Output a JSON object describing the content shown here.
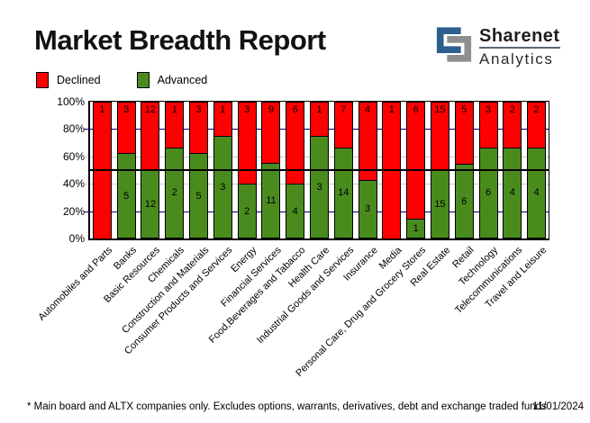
{
  "header": {
    "title": "Market Breadth Report",
    "logo": {
      "icon": "sharenet-s-icon",
      "icon_blue": "#2d5f8f",
      "icon_gray": "#8e8e8e",
      "line1": "Sharenet",
      "line2": "Analytics"
    }
  },
  "legend": {
    "items": [
      {
        "label": "Declined",
        "color": "#ff0000"
      },
      {
        "label": "Advanced",
        "color": "#4a8b1e"
      }
    ]
  },
  "chart_data": {
    "type": "bar",
    "variant": "stacked-100-percent",
    "title": "Market Breadth Report",
    "xlabel": "",
    "ylabel": "",
    "ylim": [
      0,
      100
    ],
    "y_tick_labels": [
      "0%",
      "20%",
      "40%",
      "60%",
      "80%",
      "100%"
    ],
    "grid": true,
    "legend_position": "top-left",
    "categories": [
      "Automobiles and Parts",
      "Banks",
      "Basic Resources",
      "Chemicals",
      "Construction and Materials",
      "Consumer Products and Services",
      "Energy",
      "Financial Services",
      "Food,Beverages and Tabacco",
      "Health Care",
      "Industrial Goods and Services",
      "Insurance",
      "Media",
      "Personal Care, Drug and Grocery Stores",
      "Real Estate",
      "Retail",
      "Technology",
      "Telecommunications",
      "Travel and Leisure"
    ],
    "series": [
      {
        "name": "Declined",
        "color": "#ff0000",
        "values": [
          1,
          3,
          12,
          1,
          3,
          1,
          3,
          9,
          6,
          1,
          7,
          4,
          1,
          6,
          15,
          5,
          3,
          2,
          2
        ]
      },
      {
        "name": "Advanced",
        "color": "#4a8b1e",
        "values": [
          0,
          5,
          12,
          2,
          5,
          3,
          2,
          11,
          4,
          3,
          14,
          3,
          0,
          1,
          15,
          6,
          6,
          4,
          4
        ]
      }
    ],
    "gridlines": [
      {
        "percent": 20,
        "color": "#000080"
      },
      {
        "percent": 40,
        "color": "#c8c8c8"
      },
      {
        "percent": 50,
        "color": "#000000"
      },
      {
        "percent": 60,
        "color": "#c8c8c8"
      },
      {
        "percent": 80,
        "color": "#000080"
      }
    ]
  },
  "footer": {
    "note": "* Main board and ALTX companies only. Excludes options, warrants, derivatives, debt and exchange traded funds",
    "date": "11/01/2024"
  }
}
